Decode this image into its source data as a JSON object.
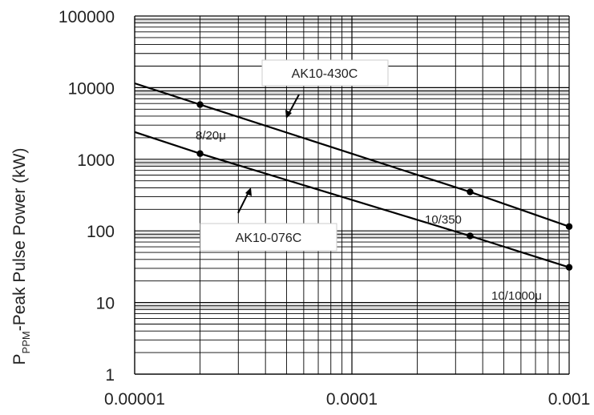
{
  "chart_data": {
    "type": "line",
    "title": "",
    "xlabel": "",
    "ylabel": "P_PPM-Peak Pulse Power (kW)",
    "ylabel_main": "P",
    "ylabel_sub": "PPM",
    "ylabel_rest": "-Peak Pulse Power (kW)",
    "x_scale": "log",
    "y_scale": "log",
    "xlim": [
      1e-05,
      0.001
    ],
    "ylim": [
      1,
      100000
    ],
    "x_ticks": [
      "0.00001",
      "0.0001",
      "0.001"
    ],
    "y_ticks": [
      "1",
      "10",
      "100",
      "1000",
      "10000",
      "100000"
    ],
    "grid": true,
    "series": [
      {
        "name": "AK10-430C",
        "x": [
          1e-05,
          2e-05,
          0.00035,
          0.001
        ],
        "y": [
          11500,
          5800,
          350,
          115
        ],
        "markers": [
          2e-05,
          0.00035,
          0.001
        ]
      },
      {
        "name": "AK10-076C",
        "x": [
          1e-05,
          2e-05,
          0.00035,
          0.001
        ],
        "y": [
          2400,
          1200,
          85,
          31
        ],
        "markers": [
          2e-05,
          0.00035,
          0.001
        ]
      }
    ],
    "annotations": [
      "8/20μ",
      "10/350",
      "10/1000μ"
    ]
  }
}
